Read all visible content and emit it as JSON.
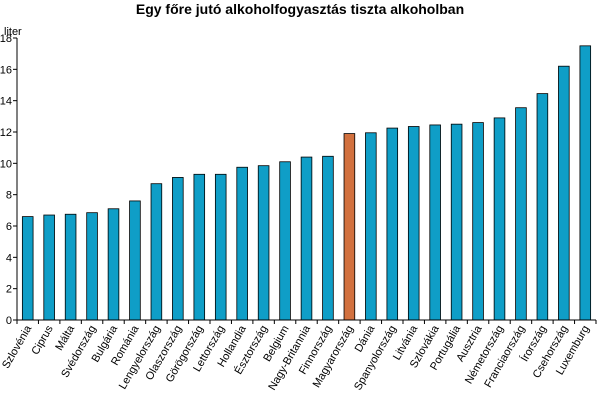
{
  "chart_data": {
    "type": "bar",
    "title": "Egy főre jutó alkoholfogyasztás tiszta alkoholban",
    "ylabel": "liter",
    "xlabel": "",
    "ylim": [
      0,
      18
    ],
    "yticks": [
      0,
      2,
      4,
      6,
      8,
      10,
      12,
      14,
      16,
      18
    ],
    "grid": false,
    "categories": [
      "Szlovénia",
      "Ciprus",
      "Málta",
      "Svédország",
      "Bulgária",
      "Románia",
      "Lengyelország",
      "Olaszország",
      "Görögország",
      "Lettország",
      "Hollandia",
      "Észtország",
      "Belgium",
      "Nagy-Britannia",
      "Finnország",
      "Magyarország",
      "Dánia",
      "Spanyolország",
      "Litvánia",
      "Szlovákia",
      "Portugália",
      "Ausztria",
      "Németország",
      "Franciaország",
      "Írország",
      "Csehország",
      "Luxemburg"
    ],
    "values": [
      6.6,
      6.7,
      6.75,
      6.85,
      7.1,
      7.6,
      8.7,
      9.1,
      9.3,
      9.3,
      9.75,
      9.85,
      10.1,
      10.4,
      10.45,
      11.9,
      11.95,
      12.25,
      12.35,
      12.45,
      12.5,
      12.6,
      12.9,
      13.55,
      14.45,
      16.2,
      17.5
    ],
    "highlight": "Magyarország",
    "colors": {
      "bar": "#0f9ec7",
      "highlight": "#d2713f",
      "outline": "#000000"
    }
  }
}
